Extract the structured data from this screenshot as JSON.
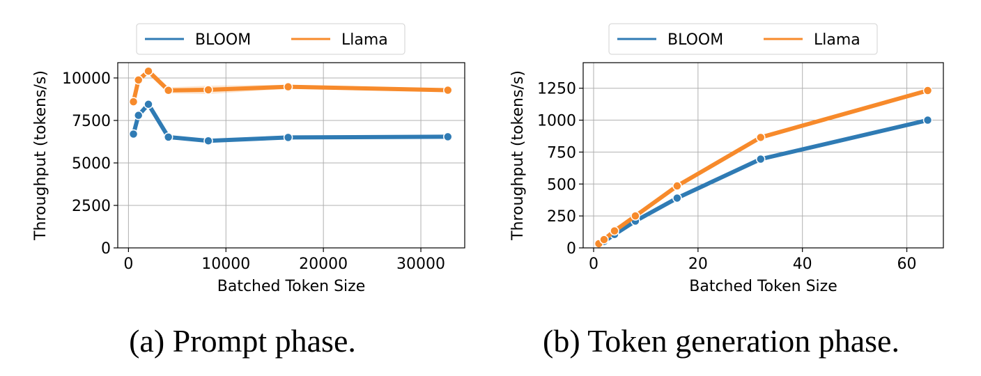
{
  "chart_data": [
    {
      "type": "line",
      "caption": "(a) Prompt phase.",
      "xlabel": "Batched Token Size",
      "ylabel": "Throughput (tokens/s)",
      "xlim": [
        -1100,
        34500
      ],
      "ylim": [
        0,
        10900
      ],
      "xticks": [
        0,
        10000,
        20000,
        30000
      ],
      "yticks": [
        0,
        2500,
        5000,
        7500,
        10000
      ],
      "ymax_axis": 12000,
      "grid": true,
      "legend": "top-center",
      "series": [
        {
          "name": "BLOOM",
          "color": "#2f7bb4",
          "x": [
            512,
            1024,
            2048,
            4096,
            8192,
            16384,
            32768
          ],
          "y": [
            6700,
            7800,
            8450,
            6520,
            6300,
            6500,
            6540
          ],
          "band": [
            0,
            0,
            0,
            0,
            0,
            0,
            0
          ]
        },
        {
          "name": "Llama",
          "color": "#f78a2b",
          "x": [
            512,
            1024,
            2048,
            4096,
            8192,
            16384,
            32768
          ],
          "y": [
            8600,
            9880,
            10400,
            9270,
            9300,
            9480,
            9280
          ],
          "band": [
            0,
            100,
            200,
            180,
            250,
            120,
            60
          ]
        }
      ]
    },
    {
      "type": "line",
      "caption": "(b) Token generation phase.",
      "xlabel": "Batched Token Size",
      "ylabel": "Throughput (tokens/s)",
      "xlim": [
        -2,
        67
      ],
      "ylim": [
        0,
        1450
      ],
      "xticks": [
        0,
        20,
        40,
        60
      ],
      "yticks": [
        0,
        250,
        500,
        750,
        1000,
        1250
      ],
      "grid": true,
      "legend": "top-center",
      "series": [
        {
          "name": "BLOOM",
          "color": "#2f7bb4",
          "x": [
            1,
            2,
            4,
            8,
            16,
            32,
            64
          ],
          "y": [
            25,
            50,
            105,
            210,
            390,
            695,
            1000
          ],
          "band": [
            0,
            0,
            0,
            0,
            0,
            0,
            0
          ]
        },
        {
          "name": "Llama",
          "color": "#f78a2b",
          "x": [
            1,
            2,
            4,
            8,
            16,
            32,
            64
          ],
          "y": [
            33,
            65,
            133,
            250,
            485,
            865,
            1232
          ],
          "band": [
            0,
            0,
            0,
            0,
            0,
            0,
            0
          ]
        }
      ]
    }
  ]
}
